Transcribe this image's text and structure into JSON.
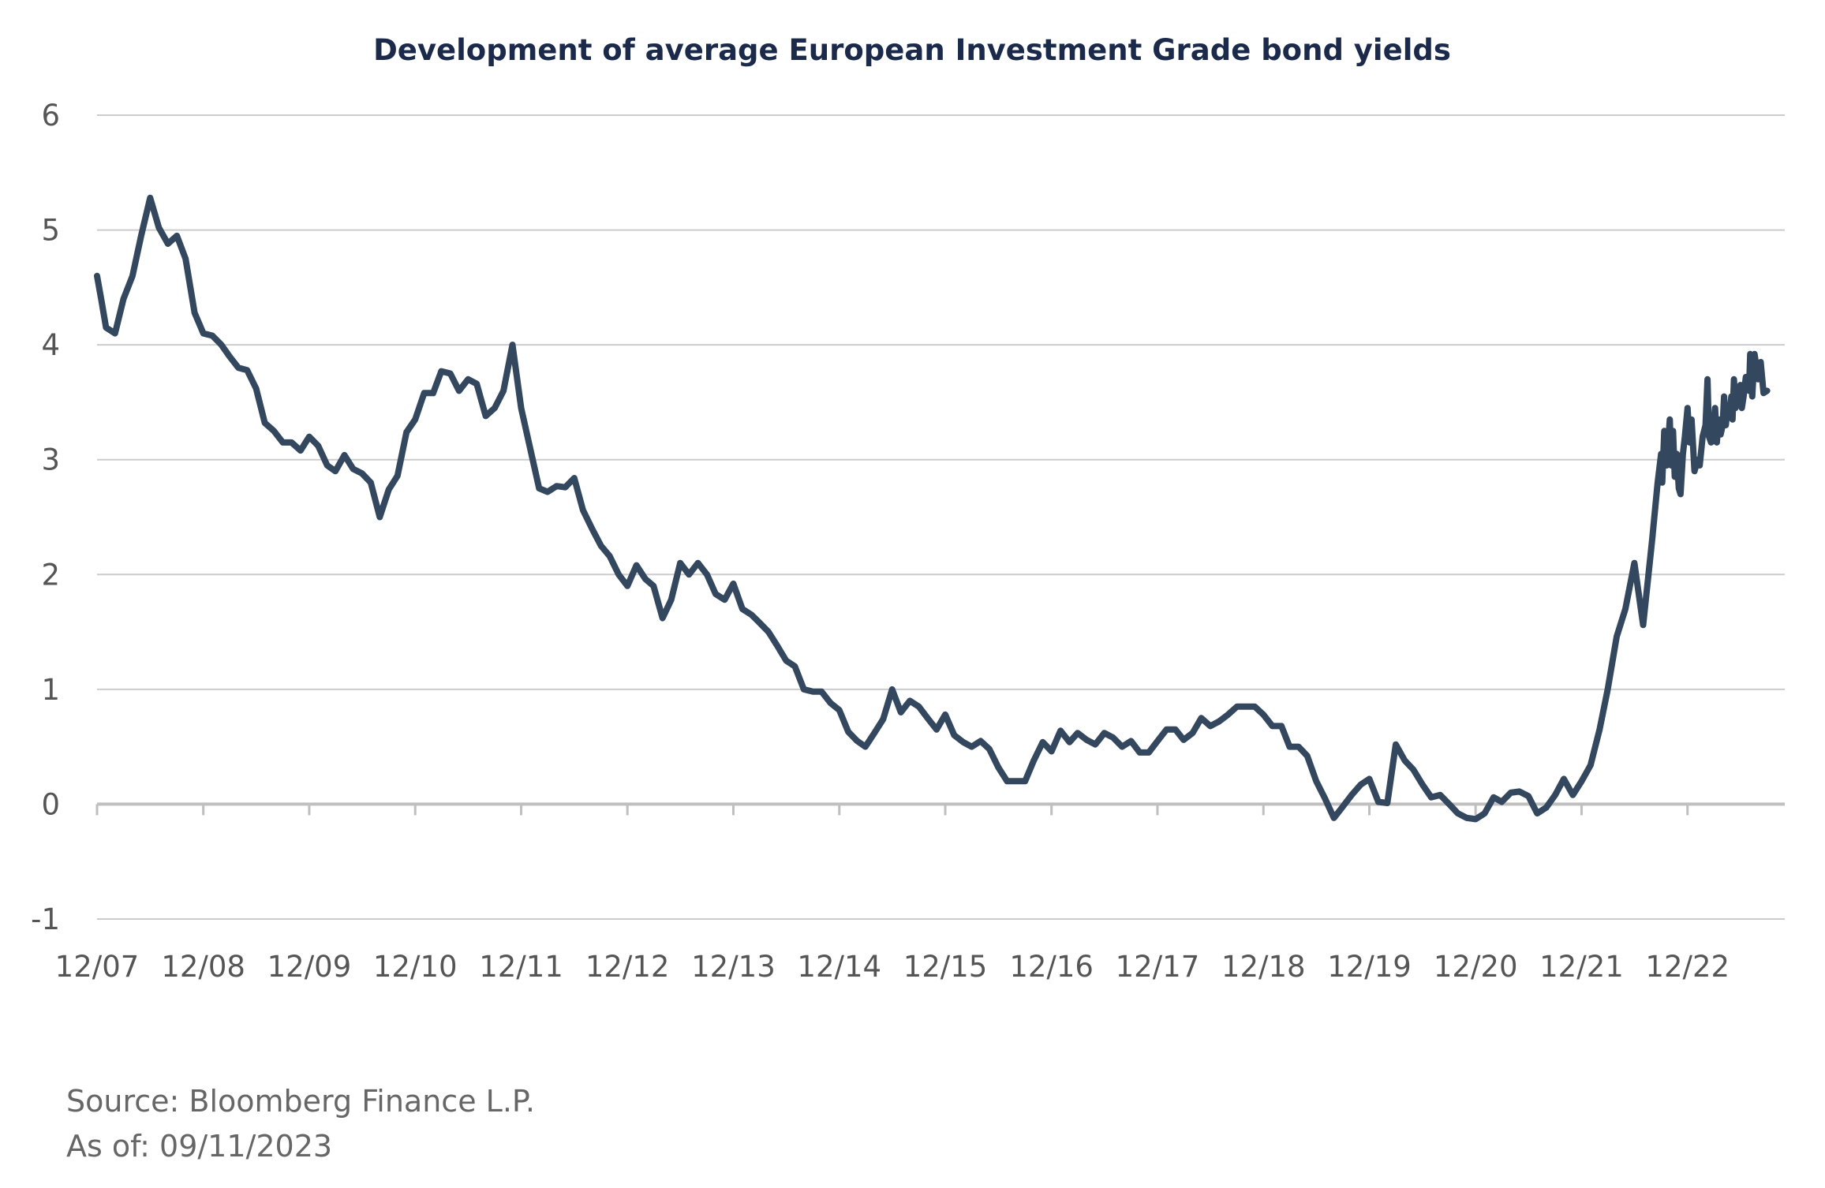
{
  "chart_data": {
    "type": "line",
    "title": "Development of average European Investment Grade bond yields",
    "xlabel": "",
    "ylabel": "",
    "x_tick_labels": [
      "12/07",
      "12/08",
      "12/09",
      "12/10",
      "12/11",
      "12/12",
      "12/13",
      "12/14",
      "12/15",
      "12/16",
      "12/17",
      "12/18",
      "12/19",
      "12/20",
      "12/21",
      "12/22"
    ],
    "y_tick_labels": [
      "6",
      "5",
      "4",
      "3",
      "2",
      "1",
      "0",
      "-1"
    ],
    "ylim": [
      -1,
      6
    ],
    "xlim": [
      "2007-12",
      "2023-11"
    ],
    "grid": "horizontal",
    "legend": "none",
    "series": [
      {
        "color": "#33475e",
        "points": [
          [
            "2007-12-01",
            4.6
          ],
          [
            "2007-12-15",
            4.4
          ],
          [
            "2008-01-01",
            4.15
          ],
          [
            "2008-02-01",
            4.1
          ],
          [
            "2008-03-01",
            4.4
          ],
          [
            "2008-04-01",
            4.6
          ],
          [
            "2008-05-01",
            4.95
          ],
          [
            "2008-06-01",
            5.28
          ],
          [
            "2008-07-01",
            5.02
          ],
          [
            "2008-08-01",
            4.88
          ],
          [
            "2008-09-01",
            4.95
          ],
          [
            "2008-10-01",
            4.75
          ],
          [
            "2008-11-01",
            4.28
          ],
          [
            "2008-12-01",
            4.1
          ],
          [
            "2009-01-01",
            4.08
          ],
          [
            "2009-02-01",
            4.0
          ],
          [
            "2009-03-01",
            3.9
          ],
          [
            "2009-04-01",
            3.8
          ],
          [
            "2009-05-01",
            3.78
          ],
          [
            "2009-06-01",
            3.62
          ],
          [
            "2009-07-01",
            3.32
          ],
          [
            "2009-08-01",
            3.25
          ],
          [
            "2009-09-01",
            3.15
          ],
          [
            "2009-10-01",
            3.15
          ],
          [
            "2009-11-01",
            3.08
          ],
          [
            "2009-12-01",
            3.2
          ],
          [
            "2010-01-01",
            3.12
          ],
          [
            "2010-02-01",
            2.95
          ],
          [
            "2010-03-01",
            2.9
          ],
          [
            "2010-04-01",
            3.04
          ],
          [
            "2010-05-01",
            2.92
          ],
          [
            "2010-06-01",
            2.88
          ],
          [
            "2010-07-01",
            2.8
          ],
          [
            "2010-08-01",
            2.5
          ],
          [
            "2010-09-01",
            2.74
          ],
          [
            "2010-10-01",
            2.86
          ],
          [
            "2010-11-01",
            3.24
          ],
          [
            "2010-12-01",
            3.35
          ],
          [
            "2011-01-01",
            3.58
          ],
          [
            "2011-02-01",
            3.58
          ],
          [
            "2011-03-01",
            3.77
          ],
          [
            "2011-04-01",
            3.75
          ],
          [
            "2011-05-01",
            3.6
          ],
          [
            "2011-06-01",
            3.7
          ],
          [
            "2011-07-01",
            3.66
          ],
          [
            "2011-08-01",
            3.38
          ],
          [
            "2011-09-01",
            3.45
          ],
          [
            "2011-10-01",
            3.6
          ],
          [
            "2011-11-01",
            4.0
          ],
          [
            "2011-12-01",
            3.45
          ],
          [
            "2012-01-01",
            3.1
          ],
          [
            "2012-02-01",
            2.75
          ],
          [
            "2012-03-01",
            2.72
          ],
          [
            "2012-04-01",
            2.77
          ],
          [
            "2012-05-01",
            2.76
          ],
          [
            "2012-06-01",
            2.84
          ],
          [
            "2012-07-01",
            2.56
          ],
          [
            "2012-08-01",
            2.4
          ],
          [
            "2012-09-01",
            2.25
          ],
          [
            "2012-10-01",
            2.16
          ],
          [
            "2012-11-01",
            2.0
          ],
          [
            "2012-12-01",
            1.9
          ],
          [
            "2013-01-01",
            2.08
          ],
          [
            "2013-02-01",
            1.96
          ],
          [
            "2013-03-01",
            1.9
          ],
          [
            "2013-04-01",
            1.62
          ],
          [
            "2013-05-01",
            1.78
          ],
          [
            "2013-06-01",
            2.1
          ],
          [
            "2013-07-01",
            2.0
          ],
          [
            "2013-08-01",
            2.1
          ],
          [
            "2013-09-01",
            2.0
          ],
          [
            "2013-10-01",
            1.83
          ],
          [
            "2013-11-01",
            1.78
          ],
          [
            "2013-12-01",
            1.92
          ],
          [
            "2014-01-01",
            1.7
          ],
          [
            "2014-02-01",
            1.65
          ],
          [
            "2014-03-01",
            1.58
          ],
          [
            "2014-04-01",
            1.5
          ],
          [
            "2014-05-01",
            1.38
          ],
          [
            "2014-06-01",
            1.25
          ],
          [
            "2014-07-01",
            1.2
          ],
          [
            "2014-08-01",
            1.0
          ],
          [
            "2014-09-01",
            0.98
          ],
          [
            "2014-10-01",
            0.98
          ],
          [
            "2014-11-01",
            0.88
          ],
          [
            "2014-12-01",
            0.82
          ],
          [
            "2015-01-01",
            0.63
          ],
          [
            "2015-02-01",
            0.55
          ],
          [
            "2015-03-01",
            0.5
          ],
          [
            "2015-04-01",
            0.62
          ],
          [
            "2015-05-01",
            0.74
          ],
          [
            "2015-06-01",
            1.0
          ],
          [
            "2015-07-01",
            0.8
          ],
          [
            "2015-08-01",
            0.9
          ],
          [
            "2015-09-01",
            0.85
          ],
          [
            "2015-10-01",
            0.75
          ],
          [
            "2015-11-01",
            0.65
          ],
          [
            "2015-12-01",
            0.78
          ],
          [
            "2016-01-01",
            0.6
          ],
          [
            "2016-02-01",
            0.54
          ],
          [
            "2016-03-01",
            0.5
          ],
          [
            "2016-04-01",
            0.55
          ],
          [
            "2016-05-01",
            0.48
          ],
          [
            "2016-06-01",
            0.32
          ],
          [
            "2016-07-01",
            0.2
          ],
          [
            "2016-08-01",
            0.2
          ],
          [
            "2016-09-01",
            0.2
          ],
          [
            "2016-10-01",
            0.38
          ],
          [
            "2016-11-01",
            0.54
          ],
          [
            "2016-12-01",
            0.46
          ],
          [
            "2017-01-01",
            0.64
          ],
          [
            "2017-02-01",
            0.54
          ],
          [
            "2017-03-01",
            0.62
          ],
          [
            "2017-04-01",
            0.56
          ],
          [
            "2017-05-01",
            0.52
          ],
          [
            "2017-06-01",
            0.62
          ],
          [
            "2017-07-01",
            0.58
          ],
          [
            "2017-08-01",
            0.5
          ],
          [
            "2017-09-01",
            0.55
          ],
          [
            "2017-10-01",
            0.45
          ],
          [
            "2017-11-01",
            0.45
          ],
          [
            "2017-12-01",
            0.55
          ],
          [
            "2018-01-01",
            0.65
          ],
          [
            "2018-02-01",
            0.65
          ],
          [
            "2018-03-01",
            0.56
          ],
          [
            "2018-04-01",
            0.62
          ],
          [
            "2018-05-01",
            0.75
          ],
          [
            "2018-06-01",
            0.68
          ],
          [
            "2018-07-01",
            0.72
          ],
          [
            "2018-08-01",
            0.78
          ],
          [
            "2018-09-01",
            0.85
          ],
          [
            "2018-10-01",
            0.85
          ],
          [
            "2018-11-01",
            0.85
          ],
          [
            "2018-12-01",
            0.78
          ],
          [
            "2019-01-01",
            0.68
          ],
          [
            "2019-02-01",
            0.68
          ],
          [
            "2019-03-01",
            0.5
          ],
          [
            "2019-04-01",
            0.5
          ],
          [
            "2019-05-01",
            0.42
          ],
          [
            "2019-06-01",
            0.2
          ],
          [
            "2019-07-01",
            0.05
          ],
          [
            "2019-08-01",
            -0.12
          ],
          [
            "2019-09-01",
            -0.02
          ],
          [
            "2019-10-01",
            0.08
          ],
          [
            "2019-11-01",
            0.17
          ],
          [
            "2019-12-01",
            0.22
          ],
          [
            "2020-01-01",
            0.02
          ],
          [
            "2020-02-01",
            0.01
          ],
          [
            "2020-03-01",
            0.52
          ],
          [
            "2020-04-01",
            0.38
          ],
          [
            "2020-05-01",
            0.3
          ],
          [
            "2020-06-01",
            0.17
          ],
          [
            "2020-07-01",
            0.06
          ],
          [
            "2020-08-01",
            0.08
          ],
          [
            "2020-09-01",
            0.0
          ],
          [
            "2020-10-01",
            -0.08
          ],
          [
            "2020-11-01",
            -0.12
          ],
          [
            "2020-12-01",
            -0.13
          ],
          [
            "2021-01-01",
            -0.08
          ],
          [
            "2021-02-01",
            0.06
          ],
          [
            "2021-03-01",
            0.02
          ],
          [
            "2021-04-01",
            0.1
          ],
          [
            "2021-05-01",
            0.11
          ],
          [
            "2021-06-01",
            0.07
          ],
          [
            "2021-07-01",
            -0.08
          ],
          [
            "2021-08-01",
            -0.03
          ],
          [
            "2021-09-01",
            0.08
          ],
          [
            "2021-10-01",
            0.22
          ],
          [
            "2021-11-01",
            0.08
          ],
          [
            "2021-12-01",
            0.2
          ],
          [
            "2022-01-01",
            0.34
          ],
          [
            "2022-02-01",
            0.65
          ],
          [
            "2022-03-01",
            1.0
          ],
          [
            "2022-04-01",
            1.46
          ],
          [
            "2022-05-01",
            1.7
          ],
          [
            "2022-06-01",
            2.1
          ],
          [
            "2022-07-01",
            1.56
          ],
          [
            "2022-08-01",
            2.3
          ],
          [
            "2022-08-20",
            2.8
          ],
          [
            "2022-09-01",
            3.05
          ],
          [
            "2022-09-05",
            2.8
          ],
          [
            "2022-09-12",
            3.25
          ],
          [
            "2022-09-20",
            2.95
          ],
          [
            "2022-10-01",
            3.35
          ],
          [
            "2022-10-06",
            2.95
          ],
          [
            "2022-10-12",
            3.25
          ],
          [
            "2022-10-18",
            2.85
          ],
          [
            "2022-10-25",
            3.05
          ],
          [
            "2022-11-01",
            2.75
          ],
          [
            "2022-11-07",
            2.7
          ],
          [
            "2022-11-15",
            3.05
          ],
          [
            "2022-11-22",
            3.2
          ],
          [
            "2022-12-01",
            3.45
          ],
          [
            "2022-12-08",
            3.15
          ],
          [
            "2022-12-15",
            3.35
          ],
          [
            "2022-12-25",
            2.9
          ],
          [
            "2023-01-05",
            3.0
          ],
          [
            "2023-01-12",
            2.95
          ],
          [
            "2023-01-22",
            3.2
          ],
          [
            "2023-02-01",
            3.3
          ],
          [
            "2023-02-08",
            3.7
          ],
          [
            "2023-02-13",
            3.2
          ],
          [
            "2023-02-20",
            3.15
          ],
          [
            "2023-03-01",
            3.3
          ],
          [
            "2023-03-06",
            3.45
          ],
          [
            "2023-03-12",
            3.15
          ],
          [
            "2023-03-18",
            3.35
          ],
          [
            "2023-03-25",
            3.22
          ],
          [
            "2023-04-01",
            3.3
          ],
          [
            "2023-04-06",
            3.55
          ],
          [
            "2023-04-12",
            3.3
          ],
          [
            "2023-04-18",
            3.45
          ],
          [
            "2023-04-25",
            3.38
          ],
          [
            "2023-05-01",
            3.55
          ],
          [
            "2023-05-05",
            3.35
          ],
          [
            "2023-05-10",
            3.7
          ],
          [
            "2023-05-15",
            3.45
          ],
          [
            "2023-05-22",
            3.5
          ],
          [
            "2023-06-01",
            3.65
          ],
          [
            "2023-06-06",
            3.45
          ],
          [
            "2023-06-12",
            3.55
          ],
          [
            "2023-06-20",
            3.72
          ],
          [
            "2023-07-01",
            3.6
          ],
          [
            "2023-07-05",
            3.92
          ],
          [
            "2023-07-12",
            3.55
          ],
          [
            "2023-07-20",
            3.92
          ],
          [
            "2023-08-01",
            3.7
          ],
          [
            "2023-08-10",
            3.85
          ],
          [
            "2023-08-20",
            3.58
          ],
          [
            "2023-09-01",
            3.6
          ]
        ]
      }
    ]
  },
  "footer": {
    "source": "Source: Bloomberg Finance L.P.",
    "as_of": "As of: 09/11/2023"
  }
}
